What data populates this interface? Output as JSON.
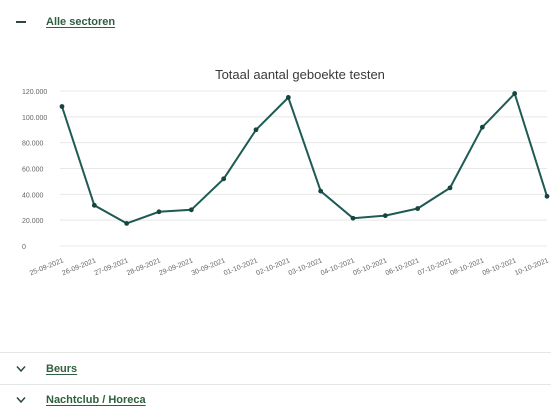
{
  "sections": {
    "all_sectors": {
      "label": "Alle sectoren",
      "state": "expanded",
      "toggle_icon": "minus-icon"
    },
    "beurs": {
      "label": "Beurs",
      "state": "collapsed",
      "toggle_icon": "chevron-down-icon"
    },
    "horeca": {
      "label": "Nachtclub / Horeca",
      "state": "collapsed",
      "toggle_icon": "chevron-down-icon"
    }
  },
  "chart_data": {
    "type": "line",
    "title": "Totaal aantal geboekte testen",
    "xlabel": "",
    "ylabel": "",
    "categories": [
      "25-09-2021",
      "26-09-2021",
      "27-09-2021",
      "28-09-2021",
      "29-09-2021",
      "30-09-2021",
      "01-10-2021",
      "02-10-2021",
      "03-10-2021",
      "04-10-2021",
      "05-10-2021",
      "06-10-2021",
      "07-10-2021",
      "08-10-2021",
      "09-10-2021",
      "10-10-2021"
    ],
    "values": [
      108000,
      31500,
      17500,
      26500,
      28000,
      52000,
      90000,
      115000,
      42500,
      21500,
      23500,
      29000,
      45000,
      92000,
      118000,
      38500
    ],
    "ylim": [
      0,
      120000
    ],
    "yticks": [
      0,
      20000,
      40000,
      60000,
      80000,
      100000,
      120000
    ],
    "ytick_labels": [
      "0",
      "20.000",
      "40.000",
      "60.000",
      "80.000",
      "100.000",
      "120.000"
    ],
    "grid": true,
    "line_color": "#1f5a54",
    "marker_color": "#15453f",
    "grid_color": "#e8e8e8"
  }
}
